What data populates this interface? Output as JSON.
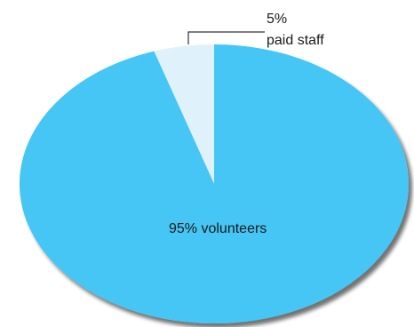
{
  "chart_data": {
    "type": "pie",
    "title": "",
    "slices": [
      {
        "label": "paid staff",
        "value": 5,
        "value_label": "5%",
        "color": "#dff1fb"
      },
      {
        "label": "volunteers",
        "value": 95,
        "value_label": "95% volunteers",
        "color": "#45c6f5"
      }
    ],
    "start_angle_deg": 0,
    "direction": "counterclockwise",
    "shadow_color": "#7a7a7a"
  }
}
